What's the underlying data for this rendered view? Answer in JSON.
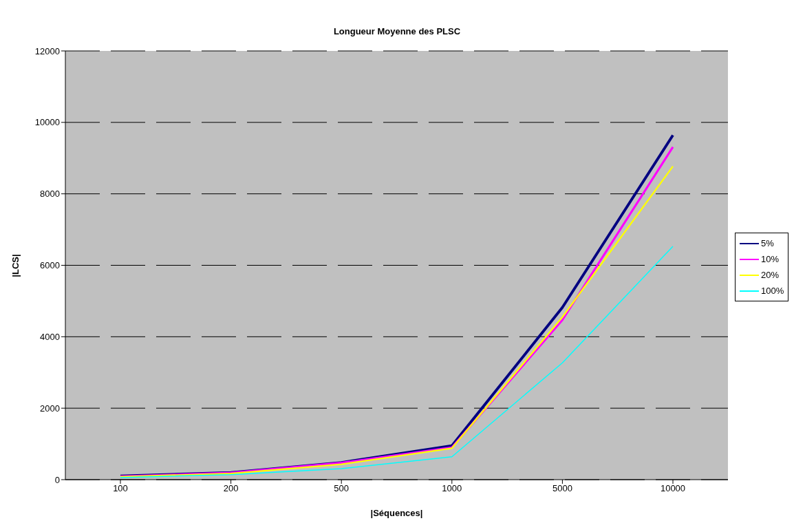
{
  "chart_data": {
    "type": "line",
    "title": "Longueur Moyenne des PLSC",
    "xlabel": "|Séquences|",
    "ylabel": "|LCS|",
    "categories": [
      "100",
      "200",
      "500",
      "1000",
      "5000",
      "10000"
    ],
    "series": [
      {
        "name": "5%",
        "color": "#000080",
        "values": [
          100,
          200,
          480,
          950,
          4820,
          9640
        ]
      },
      {
        "name": "10%",
        "color": "#ff00ff",
        "values": [
          90,
          190,
          470,
          900,
          4470,
          9310
        ]
      },
      {
        "name": "20%",
        "color": "#ffff00",
        "values": [
          80,
          170,
          430,
          880,
          4550,
          8770
        ]
      },
      {
        "name": "100%",
        "color": "#00ffff",
        "values": [
          60,
          140,
          310,
          640,
          3270,
          6530
        ]
      }
    ],
    "ylim": [
      0,
      12000
    ],
    "yticks": [
      0,
      2000,
      4000,
      6000,
      8000,
      10000,
      12000
    ],
    "grid": "y",
    "legend": "right",
    "marker": "none",
    "line_style": "solid"
  }
}
